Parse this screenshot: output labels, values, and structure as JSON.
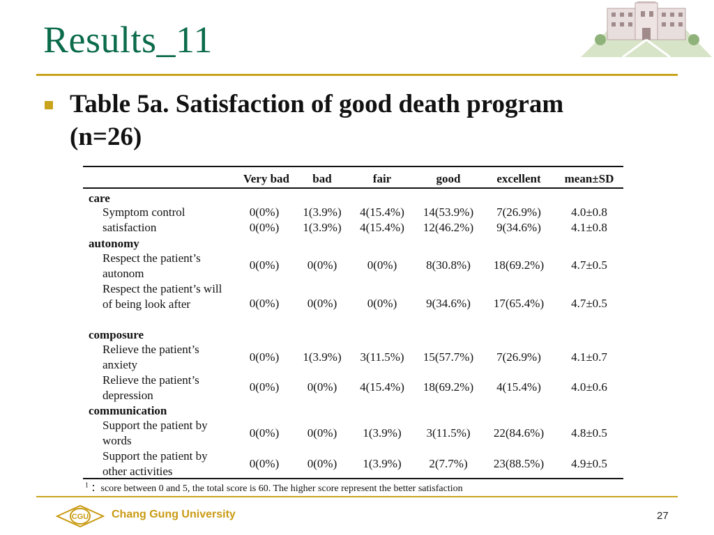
{
  "slide_title": "Results_11",
  "heading": "Table 5a. Satisfaction of good death program (n=26)",
  "columns": [
    "Very bad",
    "bad",
    "fair",
    "good",
    "excellent",
    "mean±SD"
  ],
  "groups": [
    {
      "name": "care",
      "rows": [
        {
          "label": "Symptom control",
          "values": [
            "0(0%)",
            "1(3.9%)",
            "4(15.4%)",
            "14(53.9%)",
            "7(26.9%)",
            "4.0±0.8"
          ]
        },
        {
          "label": "satisfaction",
          "values": [
            "0(0%)",
            "1(3.9%)",
            "4(15.4%)",
            "12(46.2%)",
            "9(34.6%)",
            "4.1±0.8"
          ]
        }
      ]
    },
    {
      "name": "autonomy",
      "rows": [
        {
          "label": "Respect the patient’s autonom",
          "values": [
            "0(0%)",
            "0(0%)",
            "0(0%)",
            "8(30.8%)",
            "18(69.2%)",
            "4.7±0.5"
          ]
        },
        {
          "label": "Respect the patient’s will of being look after",
          "values": [
            "0(0%)",
            "0(0%)",
            "0(0%)",
            "9(34.6%)",
            "17(65.4%)",
            "4.7±0.5"
          ]
        }
      ]
    },
    {
      "name": "composure",
      "rows": [
        {
          "label": "Relieve the patient’s anxiety",
          "values": [
            "0(0%)",
            "1(3.9%)",
            "3(11.5%)",
            "15(57.7%)",
            "7(26.9%)",
            "4.1±0.7"
          ]
        },
        {
          "label": "Relieve the patient’s depression",
          "values": [
            "0(0%)",
            "0(0%)",
            "4(15.4%)",
            "18(69.2%)",
            "4(15.4%)",
            "4.0±0.6"
          ]
        }
      ]
    },
    {
      "name": "communication",
      "rows": [
        {
          "label": "Support the patient by words",
          "values": [
            "0(0%)",
            "0(0%)",
            "1(3.9%)",
            "3(11.5%)",
            "22(84.6%)",
            "4.8±0.5"
          ]
        },
        {
          "label": "Support the patient by other activities",
          "values": [
            "0(0%)",
            "0(0%)",
            "1(3.9%)",
            "2(7.7%)",
            "23(88.5%)",
            "4.9±0.5"
          ]
        }
      ]
    }
  ],
  "footnote_mark": "1",
  "footnote_text": "：score between 0 and 5, the total score is 60. The higher score represent the better satisfaction",
  "university": "Chang Gung University",
  "page_number": "27",
  "colors": {
    "title": "#0b6b4a",
    "gold": "#c9a31c",
    "university": "#c99a12"
  }
}
